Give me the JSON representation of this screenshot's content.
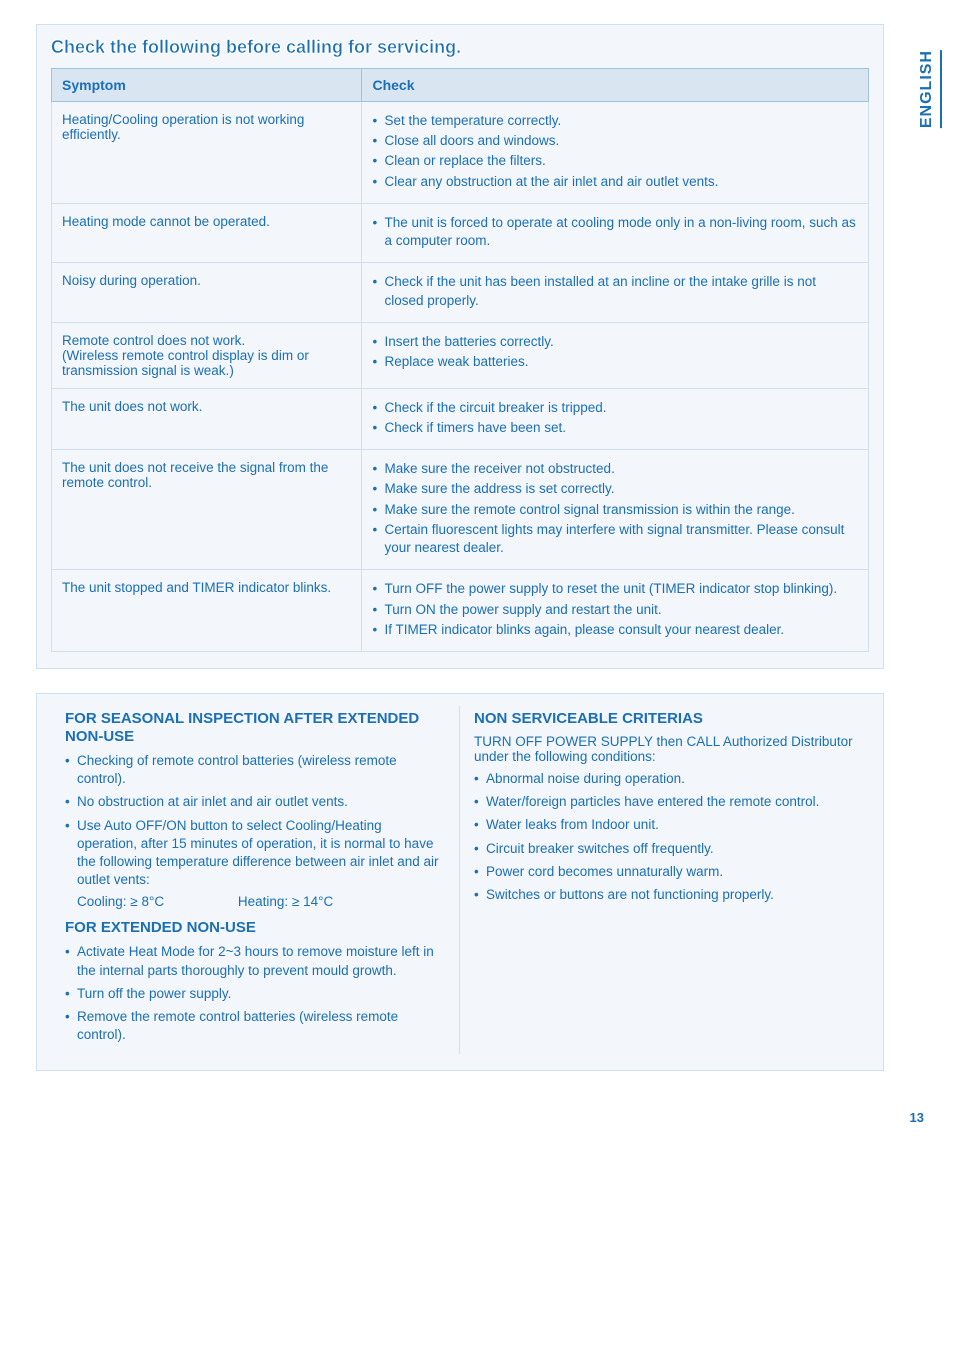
{
  "sideTab": "ENGLISH",
  "pageNumber": "13",
  "panel1Title": "Check the following before calling for servicing.",
  "tableHeaders": {
    "symptom": "Symptom",
    "check": "Check"
  },
  "rows": [
    {
      "symptom": "Heating/Cooling operation is not working efficiently.",
      "checks": [
        "Set the temperature correctly.",
        "Close all doors and windows.",
        "Clean or replace the filters.",
        "Clear any obstruction at the air inlet and air outlet vents."
      ]
    },
    {
      "symptom": "Heating mode cannot be operated.",
      "checks": [
        "The unit is forced to operate at cooling mode only in a non-living room, such as a computer room."
      ]
    },
    {
      "symptom": "Noisy during operation.",
      "checks": [
        "Check if the unit has been installed at an incline or the intake grille is not closed properly."
      ]
    },
    {
      "symptom": "Remote control does not work.\n(Wireless remote control display is dim or transmission signal is weak.)",
      "checks": [
        "Insert the batteries correctly.",
        "Replace weak batteries."
      ]
    },
    {
      "symptom": "The unit does not work.",
      "checks": [
        "Check if the circuit breaker is tripped.",
        "Check if timers have been set."
      ]
    },
    {
      "symptom": "The unit does not receive the signal from the remote control.",
      "checks": [
        "Make sure the receiver not obstructed.",
        "Make sure the address is set correctly.",
        "Make sure the remote control signal transmission is within the range.",
        "Certain fluorescent lights may interfere with signal transmitter. Please consult your nearest dealer."
      ]
    },
    {
      "symptom": "The unit stopped and TIMER indicator blinks.",
      "checks": [
        "Turn OFF the power supply to reset the unit (TIMER indicator stop blinking).",
        "Turn ON the power supply and restart the unit.",
        "If TIMER indicator blinks again, please consult your nearest dealer."
      ]
    }
  ],
  "left": {
    "h1": "FOR SEASONAL INSPECTION AFTER EXTENDED NON-USE",
    "items1": [
      "Checking of remote control batteries (wireless remote control).",
      "No obstruction at air inlet and air outlet vents.",
      "Use Auto OFF/ON button to select Cooling/Heating operation, after 15 minutes of operation, it is normal to have the following temperature difference between air inlet and air outlet vents:"
    ],
    "cooling": "Cooling: ≥ 8°C",
    "heating": "Heating: ≥ 14°C",
    "h2": "FOR EXTENDED NON-USE",
    "items2": [
      "Activate Heat Mode for 2~3 hours to remove moisture left in the internal parts thoroughly to prevent mould growth.",
      "Turn off the power supply.",
      "Remove the remote control batteries (wireless remote control)."
    ]
  },
  "right": {
    "h1": "NON SERVICEABLE CRITERIAS",
    "lead": "TURN OFF POWER SUPPLY then CALL Authorized Distributor under the following conditions:",
    "items": [
      "Abnormal noise during operation.",
      "Water/foreign particles have entered the remote control.",
      "Water leaks from Indoor unit.",
      "Circuit breaker switches off frequently.",
      "Power cord becomes unnaturally warm.",
      "Switches or buttons are not functioning properly."
    ]
  }
}
